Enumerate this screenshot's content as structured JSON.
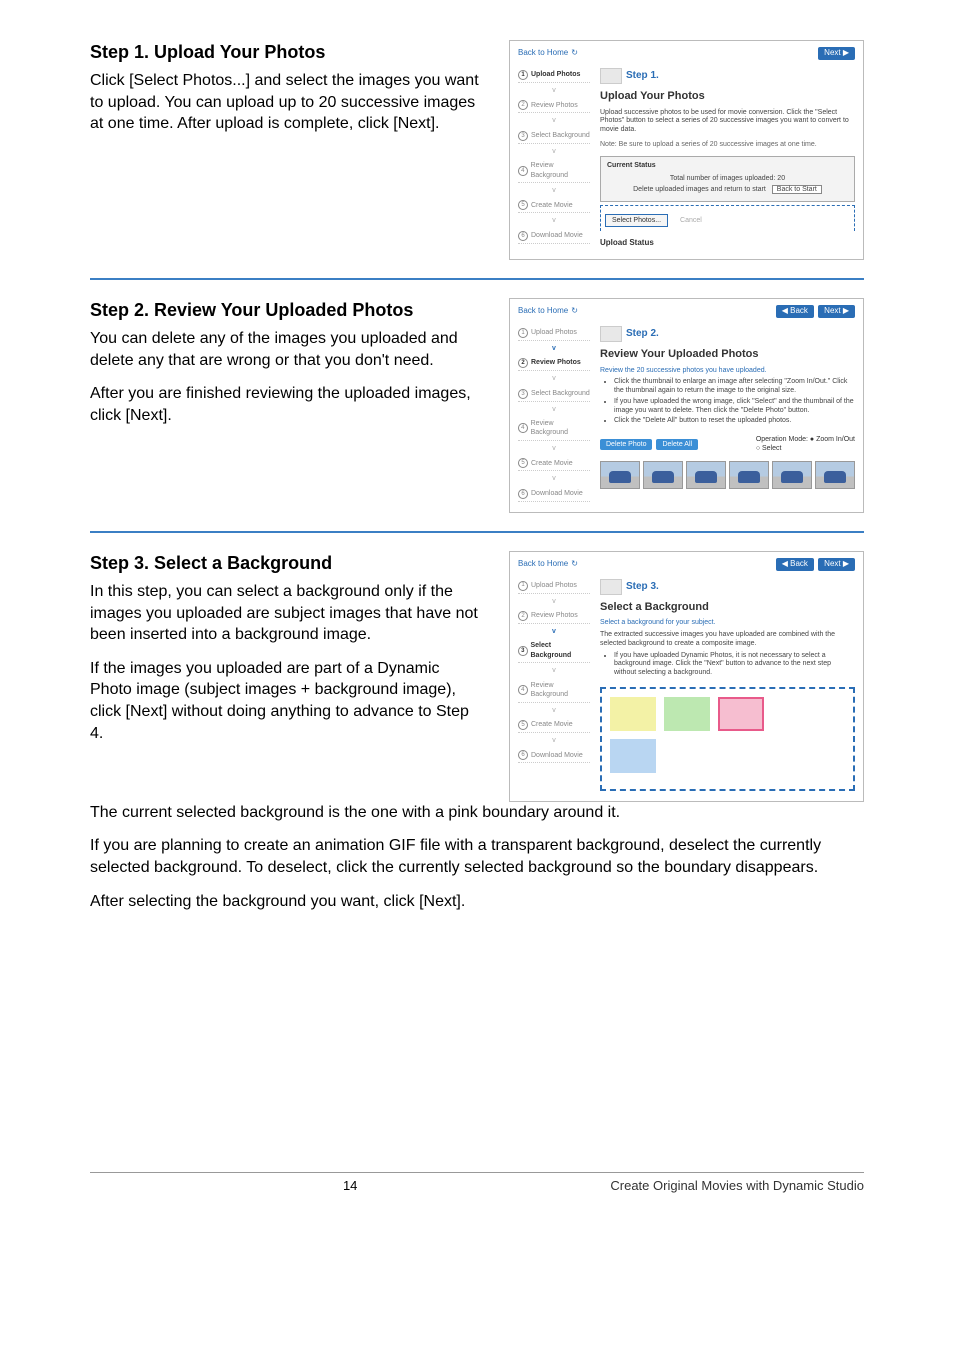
{
  "footer": {
    "page": "14",
    "text": "Create Original Movies with Dynamic Studio"
  },
  "steps": [
    {
      "heading": "Step 1.  Upload Your Photos",
      "body": [
        "Click [Select Photos...] and select the images you want to upload. You can upload up to 20 successive images at one time. After upload is complete, click [Next]."
      ]
    },
    {
      "heading": "Step 2.  Review Your Uploaded Photos",
      "body": [
        "You can delete any of the images you uploaded and delete any that are wrong or that you don't need.",
        "After you are finished reviewing the uploaded images, click [Next]."
      ]
    },
    {
      "heading": "Step 3.  Select a Background",
      "body": [
        "In this step, you can select a background only if the images you uploaded are subject images that have not been inserted into a background image.",
        "If the images you uploaded are part of a Dynamic Photo image (subject images + background image), click [Next] without doing anything to advance to Step 4.",
        "The current selected background is the one with a pink boundary around it.",
        "If you are planning to create an animation GIF file with a transparent background, deselect the currently selected background. To deselect, click the currently selected background so the boundary disappears.",
        "After selecting the background you want, click [Next]."
      ]
    }
  ],
  "panel_common": {
    "back_home": "Back to Home",
    "refresh": "↻",
    "next": "Next ▶",
    "back": "◀ Back",
    "sidebar": [
      "Upload Photos",
      "Review Photos",
      "Select Background",
      "Review Background",
      "Create Movie",
      "Download Movie"
    ]
  },
  "panel1": {
    "step_label": "Step 1.",
    "title": "Upload Your Photos",
    "text": "Upload successive photos to be used for movie conversion. Click the \"Select Photos\" button to select a series of 20 successive images you want to convert to movie data.",
    "note": "Note: Be sure to upload a series of 20 successive images at one time.",
    "status_head": "Current Status",
    "status_total": "Total number of images uploaded: 20",
    "status_delete": "Delete uploaded images and return to start",
    "back_to_start": "Back to Start",
    "select_photos": "Select Photos...",
    "cancel": "Cancel",
    "upload_status": "Upload Status"
  },
  "panel2": {
    "step_label": "Step 2.",
    "title": "Review Your Uploaded Photos",
    "intro": "Review the 20 successive photos you have uploaded.",
    "bullets": [
      "Click the thumbnail to enlarge an image after selecting \"Zoom In/Out.\" Click the thumbnail again to return the image to the original size.",
      "If you have uploaded the wrong image, click \"Select\" and the thumbnail of the image you want to delete. Then click the \"Delete Photo\" button.",
      "Click the \"Delete All\" button to reset the uploaded photos."
    ],
    "delete_photo": "Delete Photo",
    "delete_all": "Delete All",
    "op_mode_label": "Operation Mode:",
    "op_zoom": "Zoom In/Out",
    "op_select": "Select"
  },
  "panel3": {
    "step_label": "Step 3.",
    "title": "Select a Background",
    "intro": "Select a background for your subject.",
    "line1": "The extracted successive images you have uploaded are combined with the selected background to create a composite image.",
    "bullets": [
      "If you have uploaded Dynamic Photos, it is not necessary to select a background image. Click the \"Next\" button to advance to the next step without selecting a background."
    ],
    "swatch_colors": {
      "yellow": "#f3f2a6",
      "green": "#bde8b1",
      "pink": "#f6bed0",
      "pink_border": "#e85a8a",
      "blue": "#b9d6f2"
    }
  }
}
